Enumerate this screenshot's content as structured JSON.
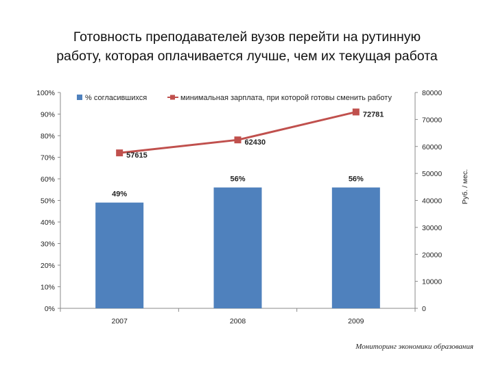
{
  "title_line1": "Готовность преподавателей вузов перейти на рутинную",
  "title_line2": "работу, которая оплачивается лучше, чем их текущая работа",
  "source": "Мониторинг экономики образования",
  "colors": {
    "bars": "#4F81BD",
    "line": "#C0504D"
  },
  "chart_data": {
    "type": "bar",
    "categories": [
      "2007",
      "2008",
      "2009"
    ],
    "series": [
      {
        "name": "% согласившихся",
        "type": "bar",
        "axis": "left",
        "values": [
          49,
          56,
          56
        ],
        "labels": [
          "49%",
          "56%",
          "56%"
        ]
      },
      {
        "name": "минимальная зарплата, при которой готовы сменить работу",
        "type": "line",
        "axis": "right",
        "values": [
          57615,
          62430,
          72781
        ],
        "labels": [
          "57615",
          "62430",
          "72781"
        ]
      }
    ],
    "y_left": {
      "ylim": [
        0,
        100
      ],
      "ticks": [
        "0%",
        "10%",
        "20%",
        "30%",
        "40%",
        "50%",
        "60%",
        "70%",
        "80%",
        "90%",
        "100%"
      ]
    },
    "y_right": {
      "ylim": [
        0,
        80000
      ],
      "ticks": [
        "0",
        "10000",
        "20000",
        "30000",
        "40000",
        "50000",
        "60000",
        "70000",
        "80000"
      ],
      "ylabel": "Руб. / мес."
    },
    "legend_position": "top",
    "grid": false
  }
}
